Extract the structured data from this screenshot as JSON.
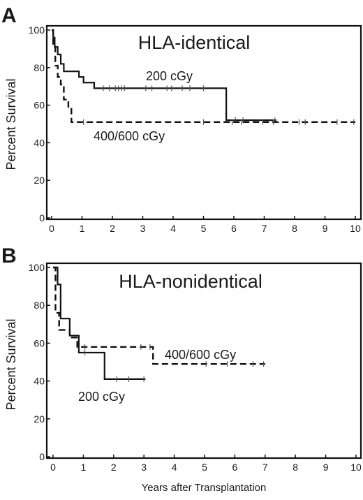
{
  "chart_data": [
    {
      "panel": "A",
      "type": "line",
      "title": "HLA-identical",
      "xlabel": "",
      "ylabel": "Percent Survival",
      "xlim": [
        0,
        10
      ],
      "ylim": [
        0,
        100
      ],
      "xticks": [
        0,
        1,
        2,
        3,
        4,
        5,
        6,
        7,
        8,
        9,
        10
      ],
      "yticks": [
        0,
        20,
        40,
        60,
        80,
        100
      ],
      "grid": false,
      "series": [
        {
          "name": "200 cGy",
          "style": "solid",
          "steps": [
            [
              0,
              100
            ],
            [
              0.05,
              96
            ],
            [
              0.1,
              91
            ],
            [
              0.2,
              87
            ],
            [
              0.3,
              82
            ],
            [
              0.4,
              78
            ],
            [
              0.9,
              75
            ],
            [
              1.05,
              72
            ],
            [
              1.4,
              69
            ],
            [
              5.75,
              52
            ]
          ],
          "end_x": 7.4,
          "censored_x": [
            1.7,
            1.9,
            2.1,
            2.2,
            2.3,
            2.4,
            3.1,
            3.3,
            3.8,
            3.95,
            4.3,
            4.55,
            5.0,
            6.05,
            6.3,
            7.35
          ]
        },
        {
          "name": "400/600 cGy",
          "style": "dashed",
          "steps": [
            [
              0,
              100
            ],
            [
              0.05,
              92
            ],
            [
              0.12,
              81
            ],
            [
              0.2,
              75
            ],
            [
              0.3,
              71
            ],
            [
              0.4,
              63
            ],
            [
              0.55,
              58
            ],
            [
              0.65,
              51
            ]
          ],
          "end_x": 10,
          "censored_x": [
            1.05,
            5.0,
            5.95,
            6.25,
            6.95,
            7.3,
            8.15,
            8.35,
            9.4,
            9.95
          ]
        }
      ]
    },
    {
      "panel": "B",
      "type": "line",
      "title": "HLA-nonidentical",
      "xlabel": "Years after Transplantation",
      "ylabel": "Percent Survival",
      "xlim": [
        0,
        10
      ],
      "ylim": [
        0,
        100
      ],
      "xticks": [
        0,
        1,
        2,
        3,
        4,
        5,
        6,
        7,
        8,
        9,
        10
      ],
      "yticks": [
        0,
        20,
        40,
        60,
        80,
        100
      ],
      "grid": false,
      "series": [
        {
          "name": "200 cGy",
          "style": "solid",
          "steps": [
            [
              0,
              100
            ],
            [
              0.15,
              91
            ],
            [
              0.25,
              73
            ],
            [
              0.55,
              64
            ],
            [
              0.85,
              55
            ],
            [
              1.7,
              41
            ]
          ],
          "end_x": 3.05,
          "censored_x": [
            1.05,
            2.1,
            2.5,
            3.0
          ]
        },
        {
          "name": "400/600 cGy",
          "style": "dashed",
          "steps": [
            [
              0,
              100
            ],
            [
              0.08,
              76
            ],
            [
              0.2,
              67
            ],
            [
              0.55,
              63
            ],
            [
              0.8,
              58
            ],
            [
              3.3,
              49
            ]
          ],
          "end_x": 7.0,
          "censored_x": [
            1.05,
            2.9,
            3.2,
            5.05,
            5.75,
            6.6,
            6.95
          ]
        }
      ]
    }
  ]
}
